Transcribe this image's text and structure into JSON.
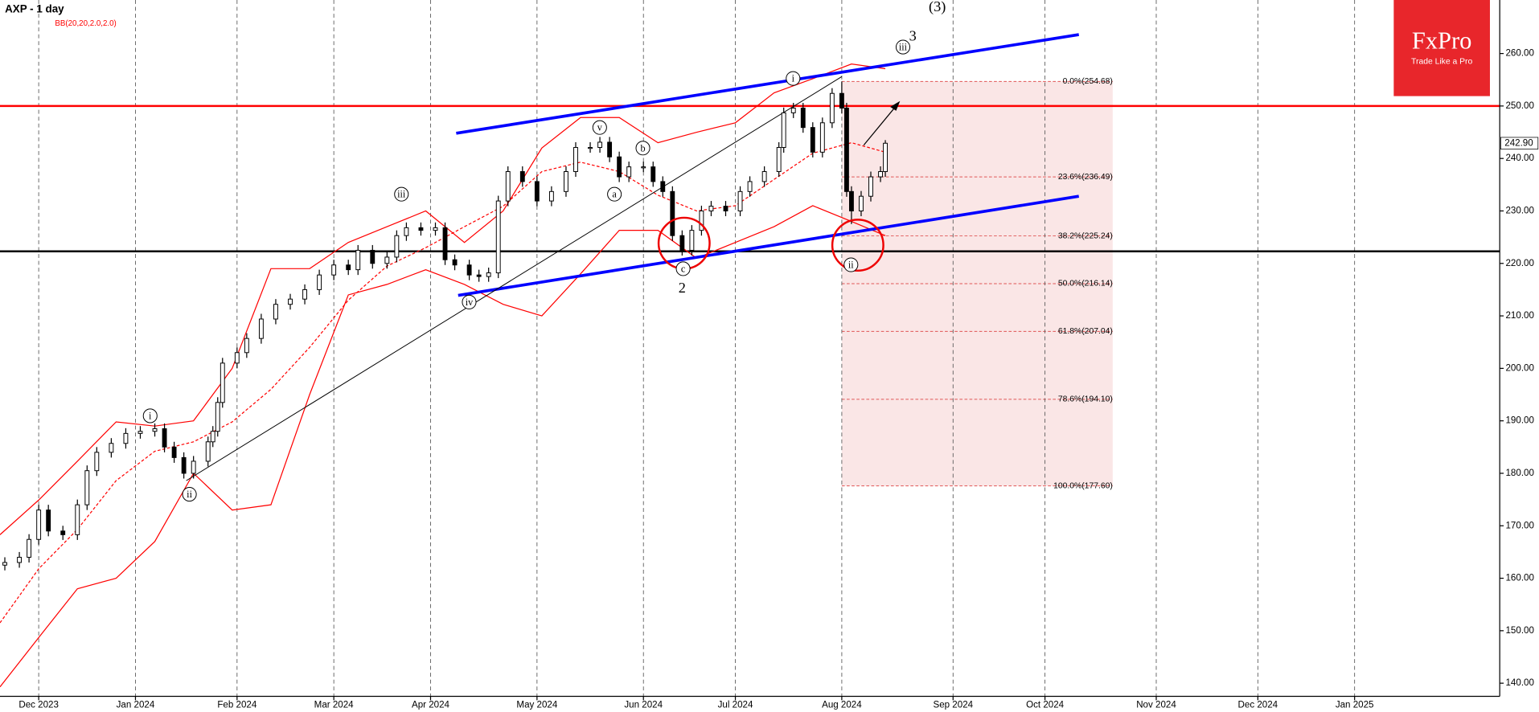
{
  "chart_data": {
    "type": "candlestick",
    "title": "AXP - 1 day",
    "subtitle": "BB(20,20,2.0,2.0)",
    "logo": {
      "name": "FxPro",
      "slogan": "Trade Like a Pro"
    },
    "xlim": [
      0,
      310
    ],
    "ylim": [
      137.5,
      270.2
    ],
    "xticks": [
      {
        "value": 8,
        "label": "Dec 2023"
      },
      {
        "value": 28,
        "label": "Jan 2024"
      },
      {
        "value": 49,
        "label": "Feb 2024"
      },
      {
        "value": 69,
        "label": "Mar 2024"
      },
      {
        "value": 89,
        "label": "Apr 2024"
      },
      {
        "value": 111,
        "label": "May 2024"
      },
      {
        "value": 133,
        "label": "Jun 2024"
      },
      {
        "value": 152,
        "label": "Jul 2024"
      },
      {
        "value": 174,
        "label": "Aug 2024"
      },
      {
        "value": 197,
        "label": "Sep 2024"
      },
      {
        "value": 216,
        "label": "Oct 2024"
      },
      {
        "value": 239,
        "label": "Nov 2024"
      },
      {
        "value": 260,
        "label": "Dec 2024"
      },
      {
        "value": 280,
        "label": "Jan 2025"
      }
    ],
    "yticks": [
      {
        "value": 140,
        "label": "140.00"
      },
      {
        "value": 150,
        "label": "150.00"
      },
      {
        "value": 160,
        "label": "160.00"
      },
      {
        "value": 170,
        "label": "170.00"
      },
      {
        "value": 180,
        "label": "180.00"
      },
      {
        "value": 190,
        "label": "190.00"
      },
      {
        "value": 200,
        "label": "200.00"
      },
      {
        "value": 210,
        "label": "210.00"
      },
      {
        "value": 220,
        "label": "220.00"
      },
      {
        "value": 230,
        "label": "230.00"
      },
      {
        "value": 240,
        "label": "240.00"
      },
      {
        "value": 250,
        "label": "250.00"
      },
      {
        "value": 260,
        "label": "260.00"
      }
    ],
    "grid": true,
    "last": {
      "value": 242.9,
      "label": "242.90"
    },
    "x": [
      1,
      4,
      6,
      8,
      10,
      13,
      16,
      18,
      20,
      23,
      26,
      29,
      32,
      34,
      36,
      38,
      40,
      43,
      44,
      45,
      46,
      49,
      51,
      54,
      57,
      60,
      63,
      66,
      69,
      72,
      74,
      77,
      80,
      82,
      84,
      87,
      90,
      92,
      94,
      97,
      99,
      101,
      103,
      105,
      108,
      111,
      114,
      117,
      119,
      122,
      124,
      126,
      128,
      130,
      133,
      135,
      137,
      139,
      141,
      143,
      145,
      147,
      150,
      153,
      155,
      158,
      161,
      162,
      164,
      166,
      168,
      170,
      172,
      174,
      175,
      176,
      178,
      180,
      182,
      183
    ],
    "open": [
      162.5,
      163,
      164,
      167.4,
      173,
      169,
      168.3,
      174,
      180.5,
      184,
      185.7,
      187.6,
      188,
      188.5,
      185,
      183,
      180,
      182.3,
      186,
      188,
      193.5,
      201,
      203,
      205.7,
      209.4,
      212.2,
      213.2,
      215,
      217.8,
      219.7,
      218.8,
      222.5,
      220,
      221.2,
      225.3,
      226.8,
      226.3,
      226.8,
      220.7,
      219.7,
      217.8,
      217.5,
      218.2,
      231.9,
      237.5,
      235.6,
      231.9,
      233.7,
      237.5,
      242.1,
      242.1,
      243.1,
      240.3,
      236.5,
      238.4,
      238.4,
      235.6,
      233.7,
      225.3,
      222.5,
      226.3,
      230,
      230.9,
      230,
      233.7,
      235.6,
      237.5,
      242.1,
      248.7,
      249.6,
      245.9,
      241.2,
      246.8,
      252.4,
      249.6,
      233.7,
      230,
      232.8,
      236.5,
      237.5
    ],
    "high": [
      164,
      165,
      168.4,
      174,
      174,
      170,
      175,
      181.5,
      185,
      186.7,
      188.6,
      189,
      189.5,
      189.5,
      186,
      184,
      183.3,
      187,
      189,
      194.5,
      202,
      204,
      206.7,
      210.4,
      213.2,
      214.2,
      216,
      218.8,
      220.7,
      220.7,
      223.5,
      223.5,
      222.2,
      226.3,
      227.8,
      227.8,
      227.8,
      227.8,
      221.7,
      220.7,
      218.8,
      219.2,
      232.9,
      238.5,
      238.5,
      236.6,
      234.7,
      238.5,
      243.1,
      243.1,
      244.1,
      244.1,
      241.3,
      239.4,
      239.4,
      239.4,
      236.6,
      234.7,
      226.3,
      227.3,
      231,
      231.9,
      231.9,
      234.7,
      236.6,
      238.5,
      243.1,
      249.7,
      250.6,
      250.6,
      246.9,
      247.8,
      253.4,
      254.68,
      250.6,
      234.7,
      233.8,
      237.5,
      238.5,
      243.5
    ],
    "low": [
      161.5,
      162,
      163,
      166.4,
      168,
      167.3,
      167.3,
      173,
      179.5,
      183,
      184.7,
      186.6,
      187,
      184,
      182,
      179,
      179,
      181.3,
      185,
      187,
      192.5,
      200,
      202,
      204.7,
      208.4,
      211.2,
      212.2,
      214,
      216.8,
      217.8,
      217.8,
      219,
      219,
      220.2,
      224.3,
      225.3,
      225.3,
      219.7,
      218.7,
      216.8,
      216.5,
      216.5,
      217.2,
      230.9,
      234.6,
      230.9,
      230.9,
      232.7,
      236.5,
      241.1,
      241.1,
      239.3,
      235.5,
      235.5,
      237.4,
      234.6,
      232.7,
      224.3,
      221.5,
      221.5,
      225.3,
      229,
      229,
      229,
      232.7,
      234.6,
      236.5,
      241.1,
      247.7,
      244.9,
      240.2,
      240.2,
      245.8,
      248.6,
      232.7,
      227.5,
      229,
      231.8,
      235.5,
      236.5
    ],
    "close": [
      163,
      164,
      167.4,
      173,
      169,
      168.3,
      174,
      180.5,
      184,
      185.7,
      187.6,
      188,
      188.5,
      185,
      183,
      180,
      182.3,
      186,
      188,
      193.5,
      201,
      203,
      205.7,
      209.4,
      212.2,
      213.2,
      215,
      217.8,
      219.7,
      218.8,
      222.5,
      220,
      221.2,
      225.3,
      226.8,
      226.3,
      226.8,
      220.7,
      219.7,
      217.8,
      217.5,
      218.2,
      231.9,
      237.5,
      235.6,
      231.9,
      233.7,
      237.5,
      242.1,
      242.1,
      243.1,
      240.3,
      236.5,
      238.4,
      238.4,
      235.6,
      233.7,
      225.3,
      222.5,
      226.3,
      230,
      230.9,
      230,
      233.7,
      235.6,
      237.5,
      242.1,
      248.7,
      249.6,
      245.9,
      241.2,
      246.8,
      252.4,
      249.6,
      233.7,
      230,
      232.8,
      236.5,
      237.5,
      242.9
    ],
    "up_color": "#ffffff",
    "down_color": "#000000",
    "bands": [
      {
        "color": "#ff0000",
        "dash": false,
        "x": [
          0,
          8,
          16,
          24,
          32,
          40,
          48,
          56,
          64,
          72,
          80,
          88,
          96,
          104,
          112,
          120,
          128,
          136,
          144,
          152,
          160,
          168,
          176,
          183
        ],
        "values": [
          168.3,
          174.9,
          182.3,
          189.8,
          189,
          190,
          200,
          219,
          219,
          224,
          227,
          230,
          224,
          230,
          242,
          247.8,
          247.8,
          243,
          245,
          246.8,
          252.5,
          255.2,
          258,
          257.1
        ]
      },
      {
        "color": "#ff0000",
        "dash": true,
        "x": [
          0,
          8,
          16,
          24,
          32,
          40,
          48,
          56,
          64,
          72,
          80,
          88,
          96,
          104,
          112,
          120,
          128,
          136,
          144,
          152,
          160,
          168,
          176,
          183
        ],
        "values": [
          151.5,
          161.8,
          169.3,
          178.6,
          184.2,
          186,
          189.8,
          196,
          204,
          213,
          219.5,
          223,
          227,
          230.9,
          237.5,
          239.3,
          237.5,
          233,
          230,
          231,
          236,
          241,
          243,
          241.2
        ]
      },
      {
        "color": "#ff0000",
        "dash": false,
        "x": [
          0,
          8,
          16,
          24,
          32,
          40,
          48,
          56,
          64,
          72,
          80,
          88,
          96,
          104,
          112,
          120,
          128,
          136,
          144,
          152,
          160,
          168,
          176,
          183
        ],
        "values": [
          139.3,
          148.7,
          158,
          160,
          167,
          180,
          173,
          174,
          195,
          214,
          216,
          218.8,
          216,
          212.2,
          210,
          218,
          226.3,
          226.3,
          221,
          224,
          227,
          231,
          228,
          225.3
        ]
      }
    ],
    "lines": [
      {
        "color": "#0000ff",
        "width": 3,
        "x": [
          94.3,
          223
        ],
        "values": [
          244.8,
          263.6
        ]
      },
      {
        "color": "#0000ff",
        "width": 3,
        "x": [
          94.7,
          223
        ],
        "values": [
          213.9,
          232.8
        ]
      },
      {
        "color": "#000000",
        "width": 0.8,
        "x": [
          38.5,
          174
        ],
        "values": [
          178.6,
          255.6
        ]
      }
    ],
    "hlines": [
      {
        "value": 250,
        "color": "#ff0000"
      },
      {
        "value": 222.3,
        "color": "#000000"
      }
    ],
    "fib": {
      "color": "#e05555",
      "x": [
        174,
        230
      ],
      "levels": [
        {
          "value": 254.68,
          "label": "0.0%(254.68)"
        },
        {
          "value": 236.49,
          "label": "23.6%(236.49)"
        },
        {
          "value": 225.24,
          "label": "38.2%(225.24)"
        },
        {
          "value": 216.14,
          "label": "50.0%(216.14)"
        },
        {
          "value": 207.04,
          "label": "61.8%(207.04)"
        },
        {
          "value": 194.1,
          "label": "78.6%(194.10)"
        },
        {
          "value": 177.6,
          "label": "100.0%(177.60)"
        }
      ]
    },
    "annotations": [
      "(3)",
      "3",
      "iii",
      "i",
      "v",
      "b",
      "a",
      "iii",
      "2",
      "c",
      "iv",
      "ii",
      "i",
      "ii"
    ]
  }
}
